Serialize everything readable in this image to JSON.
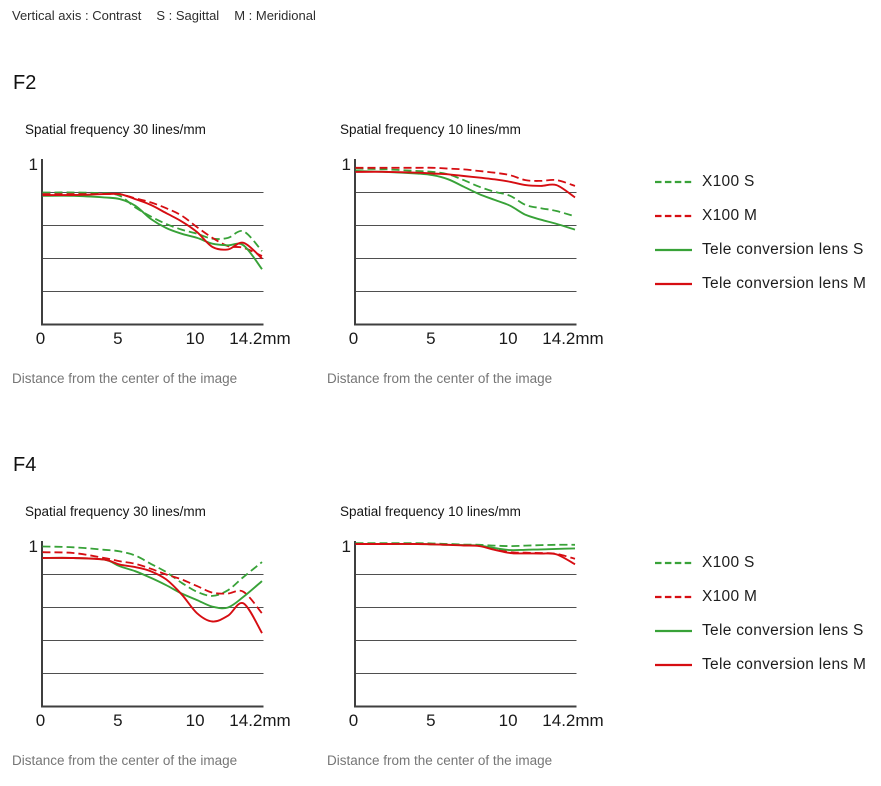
{
  "note": {
    "segments": [
      "Vertical axis : Contrast",
      "S : Sagittal",
      "M : Meridional"
    ]
  },
  "sections": [
    {
      "label": "F2"
    },
    {
      "label": "F4"
    }
  ],
  "palette": {
    "green": "#38a238",
    "red": "#d60d12",
    "grid": "#4f4f4f",
    "axis": "#3f3f3f",
    "caption_text": "#767676",
    "text": "#1c1c1c"
  },
  "legend": {
    "items": [
      {
        "label": "X100 S",
        "color": "#38a238",
        "style": "dashed"
      },
      {
        "label": "X100 M",
        "color": "#d60d12",
        "style": "dashed"
      },
      {
        "label": "Tele conversion lens S",
        "color": "#38a238",
        "style": "solid"
      },
      {
        "label": "Tele conversion lens M",
        "color": "#d60d12",
        "style": "solid"
      }
    ]
  },
  "chart_data": [
    {
      "id": "f2-30lines",
      "section": "F2",
      "type": "line",
      "title": "Spatial frequency 30 lines/mm",
      "xlabel": "Distance from the center of the image",
      "ylabel": "Contrast",
      "xlim": [
        0,
        14.2
      ],
      "ylim": [
        0,
        1
      ],
      "grid_y": [
        0.2,
        0.4,
        0.6,
        0.8
      ],
      "x_ticks": [
        0,
        5,
        10,
        14.2
      ],
      "x_tick_labels": [
        "0",
        "5",
        "10",
        "14.2mm"
      ],
      "y_tick_label": "1",
      "x": [
        0,
        2,
        4,
        5,
        6,
        7,
        8,
        9,
        10,
        11,
        12,
        13,
        14.2
      ],
      "series": [
        {
          "name": "X100 S",
          "color": "#38a238",
          "dashed": true,
          "values": [
            0.8,
            0.8,
            0.795,
            0.78,
            0.71,
            0.655,
            0.61,
            0.575,
            0.55,
            0.52,
            0.525,
            0.565,
            0.445
          ]
        },
        {
          "name": "X100 M",
          "color": "#d60d12",
          "dashed": true,
          "values": [
            0.79,
            0.79,
            0.79,
            0.79,
            0.765,
            0.74,
            0.705,
            0.66,
            0.59,
            0.525,
            0.475,
            0.465,
            0.415
          ]
        },
        {
          "name": "Tele conversion lens S",
          "color": "#38a238",
          "dashed": false,
          "values": [
            0.78,
            0.78,
            0.77,
            0.76,
            0.72,
            0.64,
            0.585,
            0.55,
            0.525,
            0.49,
            0.48,
            0.48,
            0.335
          ]
        },
        {
          "name": "Tele conversion lens M",
          "color": "#d60d12",
          "dashed": false,
          "values": [
            0.785,
            0.785,
            0.79,
            0.79,
            0.76,
            0.725,
            0.675,
            0.625,
            0.56,
            0.47,
            0.455,
            0.495,
            0.4
          ]
        }
      ]
    },
    {
      "id": "f2-10lines",
      "section": "F2",
      "type": "line",
      "title": "Spatial frequency 10 lines/mm",
      "xlabel": "Distance from the center of the image",
      "ylabel": "Contrast",
      "xlim": [
        0,
        14.2
      ],
      "ylim": [
        0,
        1
      ],
      "grid_y": [
        0.2,
        0.4,
        0.6,
        0.8
      ],
      "x_ticks": [
        0,
        5,
        10,
        14.2
      ],
      "x_tick_labels": [
        "0",
        "5",
        "10",
        "14.2mm"
      ],
      "y_tick_label": "1",
      "x": [
        0,
        2,
        4,
        5,
        6,
        7,
        8,
        9,
        10,
        11,
        12,
        13,
        14.2
      ],
      "series": [
        {
          "name": "X100 S",
          "color": "#38a238",
          "dashed": true,
          "values": [
            0.945,
            0.94,
            0.93,
            0.925,
            0.91,
            0.875,
            0.835,
            0.805,
            0.78,
            0.725,
            0.705,
            0.688,
            0.655
          ]
        },
        {
          "name": "X100 M",
          "color": "#d60d12",
          "dashed": true,
          "values": [
            0.95,
            0.95,
            0.95,
            0.95,
            0.945,
            0.94,
            0.93,
            0.92,
            0.905,
            0.875,
            0.87,
            0.875,
            0.84
          ]
        },
        {
          "name": "Tele conversion lens S",
          "color": "#38a238",
          "dashed": false,
          "values": [
            0.93,
            0.925,
            0.915,
            0.905,
            0.88,
            0.835,
            0.79,
            0.755,
            0.72,
            0.665,
            0.635,
            0.61,
            0.575
          ]
        },
        {
          "name": "Tele conversion lens M",
          "color": "#d60d12",
          "dashed": false,
          "values": [
            0.925,
            0.925,
            0.92,
            0.915,
            0.91,
            0.9,
            0.89,
            0.88,
            0.865,
            0.845,
            0.84,
            0.845,
            0.77
          ]
        }
      ]
    },
    {
      "id": "f4-30lines",
      "section": "F4",
      "type": "line",
      "title": "Spatial frequency 30 lines/mm",
      "xlabel": "Distance from the center of the image",
      "ylabel": "Contrast",
      "xlim": [
        0,
        14.2
      ],
      "ylim": [
        0,
        1
      ],
      "grid_y": [
        0.2,
        0.4,
        0.6,
        0.8
      ],
      "x_ticks": [
        0,
        5,
        10,
        14.2
      ],
      "x_tick_labels": [
        "0",
        "5",
        "10",
        "14.2mm"
      ],
      "y_tick_label": "1",
      "x": [
        0,
        2,
        4,
        5,
        6,
        7,
        8,
        9,
        10,
        11,
        12,
        13,
        14.2
      ],
      "series": [
        {
          "name": "X100 S",
          "color": "#38a238",
          "dashed": true,
          "values": [
            0.97,
            0.965,
            0.95,
            0.94,
            0.915,
            0.865,
            0.815,
            0.75,
            0.695,
            0.67,
            0.705,
            0.785,
            0.875
          ]
        },
        {
          "name": "X100 M",
          "color": "#d60d12",
          "dashed": true,
          "values": [
            0.935,
            0.93,
            0.9,
            0.88,
            0.865,
            0.835,
            0.8,
            0.77,
            0.73,
            0.69,
            0.685,
            0.695,
            0.565
          ]
        },
        {
          "name": "Tele conversion lens S",
          "color": "#38a238",
          "dashed": false,
          "values": [
            0.9,
            0.9,
            0.89,
            0.85,
            0.82,
            0.78,
            0.735,
            0.685,
            0.645,
            0.605,
            0.6,
            0.665,
            0.76
          ]
        },
        {
          "name": "Tele conversion lens M",
          "color": "#d60d12",
          "dashed": false,
          "values": [
            0.9,
            0.9,
            0.89,
            0.86,
            0.845,
            0.82,
            0.77,
            0.68,
            0.565,
            0.515,
            0.55,
            0.625,
            0.445
          ]
        }
      ]
    },
    {
      "id": "f4-10lines",
      "section": "F4",
      "type": "line",
      "title": "Spatial frequency 10 lines/mm",
      "xlabel": "Distance from the center of the image",
      "ylabel": "Contrast",
      "xlim": [
        0,
        14.2
      ],
      "ylim": [
        0,
        1
      ],
      "grid_y": [
        0.2,
        0.4,
        0.6,
        0.8
      ],
      "x_ticks": [
        0,
        5,
        10,
        14.2
      ],
      "x_tick_labels": [
        "0",
        "5",
        "10",
        "14.2mm"
      ],
      "y_tick_label": "1",
      "x": [
        0,
        2,
        4,
        5,
        6,
        7,
        8,
        9,
        10,
        11,
        12,
        13,
        14.2
      ],
      "series": [
        {
          "name": "X100 S",
          "color": "#38a238",
          "dashed": true,
          "values": [
            0.99,
            0.99,
            0.99,
            0.988,
            0.985,
            0.982,
            0.98,
            0.975,
            0.972,
            0.975,
            0.978,
            0.98,
            0.98
          ]
        },
        {
          "name": "X100 M",
          "color": "#d60d12",
          "dashed": true,
          "values": [
            0.985,
            0.985,
            0.985,
            0.983,
            0.98,
            0.978,
            0.975,
            0.955,
            0.935,
            0.932,
            0.93,
            0.925,
            0.895
          ]
        },
        {
          "name": "Tele conversion lens S",
          "color": "#38a238",
          "dashed": false,
          "values": [
            0.985,
            0.985,
            0.985,
            0.983,
            0.98,
            0.978,
            0.975,
            0.96,
            0.948,
            0.95,
            0.952,
            0.955,
            0.958
          ]
        },
        {
          "name": "Tele conversion lens M",
          "color": "#d60d12",
          "dashed": false,
          "values": [
            0.985,
            0.985,
            0.985,
            0.983,
            0.98,
            0.976,
            0.972,
            0.95,
            0.93,
            0.928,
            0.927,
            0.922,
            0.862
          ]
        }
      ]
    }
  ]
}
